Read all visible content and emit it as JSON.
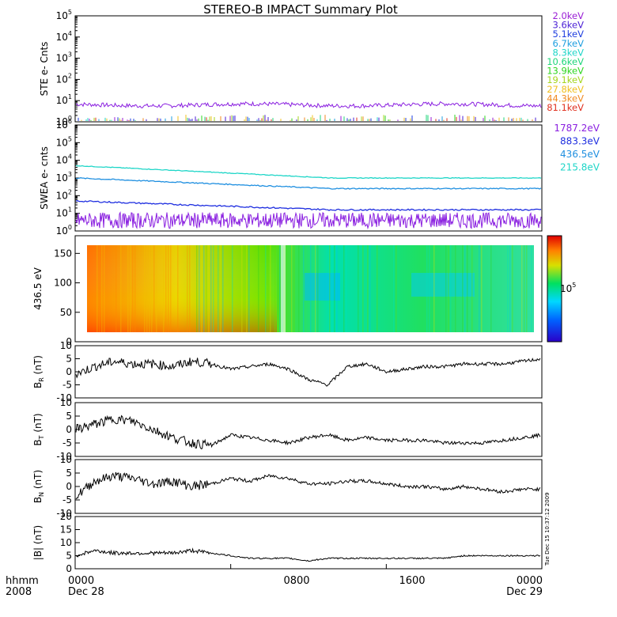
{
  "title": "STEREO-B IMPACT Summary Plot",
  "footer": {
    "left_top": "hhmm",
    "left_bottom": "2008",
    "ticks": [
      "0000",
      "0800",
      "1600",
      "0000"
    ],
    "date_start": "Dec 28",
    "date_end": "Dec 29"
  },
  "timestamp": "Tue Dec 15 10:37:12 2009",
  "chart_data": [
    {
      "type": "line",
      "panel": "ste",
      "ylabel": "STE e- Cnts",
      "yscale": "log",
      "ylim_exp": [
        0,
        5
      ],
      "ticks_exp": [
        0,
        1,
        2,
        3,
        4,
        5
      ],
      "legend": [
        {
          "label": "2.0keV",
          "color": "#9a1fd6"
        },
        {
          "label": "3.6keV",
          "color": "#4a1fd6"
        },
        {
          "label": "5.1keV",
          "color": "#1f3fe0"
        },
        {
          "label": "6.7keV",
          "color": "#1f9fe0"
        },
        {
          "label": "8.3keV",
          "color": "#1fd6c8"
        },
        {
          "label": "10.6keV",
          "color": "#1fd67a"
        },
        {
          "label": "13.9keV",
          "color": "#2ed61f"
        },
        {
          "label": "19.1keV",
          "color": "#a6d61f"
        },
        {
          "label": "27.8keV",
          "color": "#f0c020"
        },
        {
          "label": "44.3keV",
          "color": "#f08a20"
        },
        {
          "label": "81.1keV",
          "color": "#e0301f"
        }
      ],
      "series": [
        {
          "name": "2.0keV",
          "color": "#8a1fe0",
          "level_exp": 0.8,
          "noise_exp": 0.1
        }
      ]
    },
    {
      "type": "line",
      "panel": "swea",
      "ylabel": "SWEA e- cnts",
      "yscale": "log",
      "ylim_exp": [
        0,
        6
      ],
      "ticks_exp": [
        0,
        1,
        2,
        3,
        4,
        5,
        6
      ],
      "legend": [
        {
          "label": "1787.2eV",
          "color": "#8a1fe0"
        },
        {
          "label": "883.3eV",
          "color": "#1f2fe0"
        },
        {
          "label": "436.5eV",
          "color": "#1f8fe0"
        },
        {
          "label": "215.8eV",
          "color": "#1fd6c8"
        }
      ],
      "series": [
        {
          "name": "215.8eV",
          "color": "#1fd6c8",
          "start_exp": 3.7,
          "end_exp": 3.0
        },
        {
          "name": "436.5eV",
          "color": "#1f8fe0",
          "start_exp": 3.0,
          "end_exp": 2.4
        },
        {
          "name": "883.3eV",
          "color": "#1f2fe0",
          "start_exp": 1.7,
          "end_exp": 1.2
        },
        {
          "name": "1787.2eV",
          "color": "#8a1fe0",
          "start_exp": 0.6,
          "end_exp": 0.6
        }
      ]
    },
    {
      "type": "heatmap",
      "panel": "pad",
      "ylabel": "436.5 eV",
      "ylim": [
        0,
        180
      ],
      "ticks": [
        0,
        50,
        100,
        150
      ],
      "colorbar_label": "10",
      "colorbar_exp": "5"
    },
    {
      "type": "line",
      "panel": "br",
      "ylabel_main": "B",
      "ylabel_sub": "R",
      "ylabel_unit": "(nT)",
      "ylim": [
        -10,
        10
      ],
      "ticks": [
        -10,
        -5,
        0,
        5,
        10
      ],
      "x": [
        0,
        1,
        2,
        3,
        4,
        5,
        6,
        7,
        8,
        9,
        10,
        11,
        12,
        13,
        14,
        15,
        16,
        17,
        18,
        19,
        20,
        21,
        22,
        23,
        24
      ],
      "y": [
        -1,
        2,
        4,
        3,
        3,
        2,
        4,
        3,
        1,
        2,
        3,
        1,
        -3,
        -5,
        2,
        3,
        0,
        1,
        2,
        2,
        3,
        3,
        3,
        4,
        5
      ]
    },
    {
      "type": "line",
      "panel": "bt",
      "ylabel_main": "B",
      "ylabel_sub": "T",
      "ylabel_unit": "(nT)",
      "ylim": [
        -10,
        10
      ],
      "ticks": [
        -10,
        -5,
        0,
        5,
        10
      ],
      "x": [
        0,
        1,
        2,
        3,
        4,
        5,
        6,
        7,
        8,
        9,
        10,
        11,
        12,
        13,
        14,
        15,
        16,
        17,
        18,
        19,
        20,
        21,
        22,
        23,
        24
      ],
      "y": [
        0,
        2,
        4,
        3,
        0,
        -3,
        -5,
        -6,
        -2,
        -3,
        -4,
        -5,
        -3,
        -2,
        -4,
        -3,
        -4,
        -4,
        -4,
        -5,
        -5,
        -5,
        -4,
        -3,
        -2
      ]
    },
    {
      "type": "line",
      "panel": "bn",
      "ylabel_main": "B",
      "ylabel_sub": "N",
      "ylabel_unit": "(nT)",
      "ylim": [
        -10,
        10
      ],
      "ticks": [
        -10,
        -5,
        0,
        5,
        10
      ],
      "x": [
        0,
        1,
        2,
        3,
        4,
        5,
        6,
        7,
        8,
        9,
        10,
        11,
        12,
        13,
        14,
        15,
        16,
        17,
        18,
        19,
        20,
        21,
        22,
        23,
        24
      ],
      "y": [
        -4,
        2,
        4,
        3,
        1,
        2,
        0,
        1,
        3,
        2,
        4,
        3,
        1,
        1,
        2,
        2,
        1,
        0,
        0,
        -1,
        0,
        -1,
        -2,
        -1,
        -1
      ]
    },
    {
      "type": "line",
      "panel": "bmag",
      "ylabel_main": "|B|",
      "ylabel_sub": "",
      "ylabel_unit": "(nT)",
      "ylim": [
        0,
        20
      ],
      "ticks": [
        0,
        5,
        10,
        15,
        20
      ],
      "x": [
        0,
        1,
        2,
        3,
        4,
        5,
        6,
        7,
        8,
        9,
        10,
        11,
        12,
        13,
        14,
        15,
        16,
        17,
        18,
        19,
        20,
        21,
        22,
        23,
        24
      ],
      "y": [
        5,
        7,
        6,
        6,
        6,
        6,
        7,
        6,
        5,
        4,
        4,
        4,
        3,
        4,
        4,
        4,
        4,
        4,
        4,
        4,
        5,
        5,
        5,
        5,
        5
      ]
    }
  ]
}
